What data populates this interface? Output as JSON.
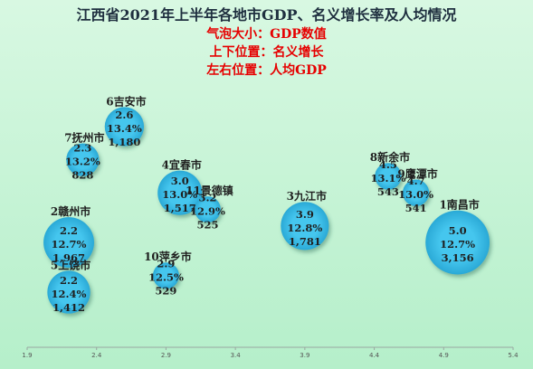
{
  "chart_data": {
    "type": "bubble",
    "title": "江西省2021年上半年各地市GDP、名义增长率及人均情况",
    "subtitles": [
      "气泡大小：GDP数值",
      "上下位置：名义增长",
      "左右位置：人均GDP"
    ],
    "xlim": [
      1.9,
      5.4
    ],
    "x_ticks": [
      "1.9",
      "2.4",
      "2.9",
      "3.4",
      "3.9",
      "4.4",
      "4.9",
      "5.4"
    ],
    "grid": false,
    "colors": {
      "bubble": "#3cbfe8",
      "background_top": "#d6f7e0",
      "background_bottom": "#b8f0cc",
      "title": "#1f2f3f",
      "subtitle": "#e60000"
    },
    "points": [
      {
        "label": "6吉安市",
        "per_capita": "2.6",
        "growth": "13.4%",
        "gdp": "1,180",
        "x": 2.6,
        "y": 13.4,
        "size": 1180
      },
      {
        "label": "7抚州市",
        "per_capita": "2.3",
        "growth": "13.2%",
        "gdp": "828",
        "x": 2.3,
        "y": 13.2,
        "size": 828
      },
      {
        "label": "4宜春市",
        "per_capita": "3.0",
        "growth": "13.0%",
        "gdp": "1,517",
        "x": 3.0,
        "y": 13.0,
        "size": 1517
      },
      {
        "label": "11景德镇",
        "per_capita": "3.2",
        "growth": "12.9%",
        "gdp": "525",
        "x": 3.2,
        "y": 12.9,
        "size": 525
      },
      {
        "label": "2赣州市",
        "per_capita": "2.2",
        "growth": "12.7%",
        "gdp": "1,967",
        "x": 2.2,
        "y": 12.7,
        "size": 1967
      },
      {
        "label": "5上饶市",
        "per_capita": "2.2",
        "growth": "12.4%",
        "gdp": "1,412",
        "x": 2.2,
        "y": 12.4,
        "size": 1412
      },
      {
        "label": "10萍乡市",
        "per_capita": "2.9",
        "growth": "12.5%",
        "gdp": "529",
        "x": 2.9,
        "y": 12.5,
        "size": 529
      },
      {
        "label": "3九江市",
        "per_capita": "3.9",
        "growth": "12.8%",
        "gdp": "1,781",
        "x": 3.9,
        "y": 12.8,
        "size": 1781
      },
      {
        "label": "8新余市",
        "per_capita": "4.5",
        "growth": "13.1%",
        "gdp": "543",
        "x": 4.5,
        "y": 13.1,
        "size": 543
      },
      {
        "label": "9鹰潭市",
        "per_capita": "4.7",
        "growth": "13.0%",
        "gdp": "541",
        "x": 4.7,
        "y": 13.0,
        "size": 541
      },
      {
        "label": "1南昌市",
        "per_capita": "5.0",
        "growth": "12.7%",
        "gdp": "3,156",
        "x": 5.0,
        "y": 12.7,
        "size": 3156
      }
    ]
  }
}
